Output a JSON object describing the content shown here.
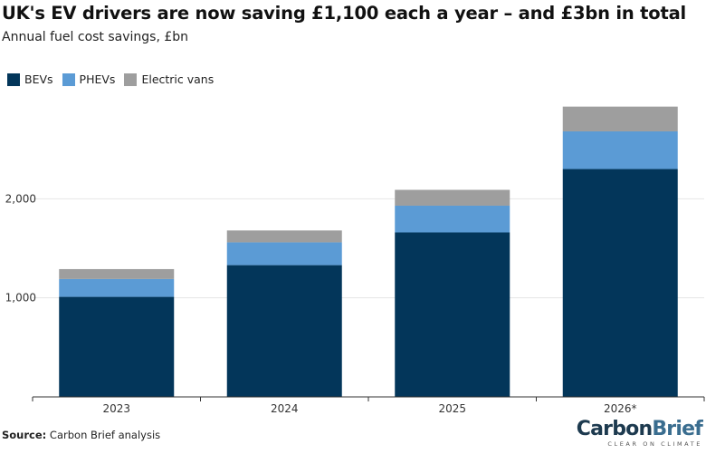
{
  "header": {
    "title": "UK's EV drivers are now saving £1,100 each a year – and £3bn in total",
    "subtitle": "Annual fuel cost savings, £bn"
  },
  "footer": {
    "source_label": "Source:",
    "source_text": "Carbon Brief analysis"
  },
  "logo": {
    "carbon": "Carbon",
    "brief": "Brief",
    "tagline": "CLEAR ON CLIMATE"
  },
  "colors": {
    "bevs": "#03365a",
    "phevs": "#5b9bd5",
    "vans": "#9e9e9e",
    "grid": "#e6e6e6"
  },
  "chart_data": {
    "type": "bar",
    "stacked": true,
    "categories": [
      "2023",
      "2024",
      "2025",
      "2026*"
    ],
    "series": [
      {
        "name": "BEVs",
        "values": [
          1010,
          1330,
          1660,
          2300
        ]
      },
      {
        "name": "PHEVs",
        "values": [
          180,
          230,
          270,
          380
        ]
      },
      {
        "name": "Electric vans",
        "values": [
          100,
          120,
          160,
          250
        ]
      }
    ],
    "yticks": [
      "1,000",
      "2,000"
    ],
    "ytick_values": [
      1000,
      2000
    ],
    "ylim": [
      0,
      3000
    ],
    "legend_position": "top-left",
    "grid": true
  }
}
